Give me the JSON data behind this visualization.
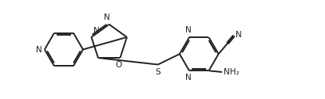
{
  "bg_color": "#ffffff",
  "line_color": "#222222",
  "line_width": 1.4,
  "font_size": 7.5,
  "fig_width": 4.07,
  "fig_height": 1.25,
  "dpi": 100,
  "xlim": [
    0.0,
    10.5
  ],
  "ylim": [
    -1.5,
    2.2
  ]
}
